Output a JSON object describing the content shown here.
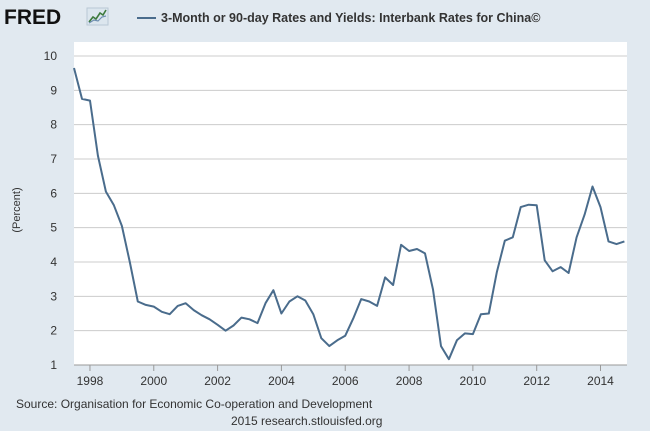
{
  "header": {
    "logo_text": "FRED",
    "logo_icon": "trend-line-icon",
    "legend_label": "3-Month or 90-day Rates and Yields: Interbank Rates for China©"
  },
  "footer": {
    "source": "Source: Organisation for Economic Co-operation and Development",
    "credit": "2015 research.stlouisfed.org"
  },
  "colors": {
    "background": "#e1e9f0",
    "plot_background": "#ffffff",
    "series": "#4a6c8c",
    "gridline": "#cccccc"
  },
  "chart_data": {
    "type": "line",
    "title": "",
    "xlabel": "",
    "ylabel": "(Percent)",
    "ylim": [
      1,
      10
    ],
    "xlim": [
      1997.5,
      2014.83
    ],
    "grid": true,
    "legend_position": "top",
    "yticks": [
      "1",
      "2",
      "3",
      "4",
      "5",
      "6",
      "7",
      "8",
      "9",
      "10"
    ],
    "xticks": [
      "1998",
      "2000",
      "2002",
      "2004",
      "2006",
      "2008",
      "2010",
      "2012",
      "2014"
    ],
    "series": [
      {
        "name": "3-Month or 90-day Rates and Yields: Interbank Rates for China©",
        "x": [
          1997.5,
          1997.75,
          1998.0,
          1998.25,
          1998.5,
          1998.75,
          1999.0,
          1999.25,
          1999.5,
          1999.75,
          2000.0,
          2000.25,
          2000.5,
          2000.75,
          2001.0,
          2001.25,
          2001.5,
          2001.75,
          2002.0,
          2002.25,
          2002.5,
          2002.75,
          2003.0,
          2003.25,
          2003.5,
          2003.75,
          2004.0,
          2004.25,
          2004.5,
          2004.75,
          2005.0,
          2005.25,
          2005.5,
          2005.75,
          2006.0,
          2006.25,
          2006.5,
          2006.75,
          2007.0,
          2007.25,
          2007.5,
          2007.75,
          2008.0,
          2008.25,
          2008.5,
          2008.75,
          2009.0,
          2009.25,
          2009.5,
          2009.75,
          2010.0,
          2010.25,
          2010.5,
          2010.75,
          2011.0,
          2011.25,
          2011.5,
          2011.75,
          2012.0,
          2012.25,
          2012.5,
          2012.75,
          2013.0,
          2013.25,
          2013.5,
          2013.75,
          2014.0,
          2014.25,
          2014.5,
          2014.75
        ],
        "values": [
          9.65,
          8.75,
          8.7,
          7.1,
          6.05,
          5.65,
          5.05,
          4.0,
          2.85,
          2.75,
          2.7,
          2.55,
          2.48,
          2.72,
          2.8,
          2.6,
          2.45,
          2.33,
          2.17,
          2.0,
          2.15,
          2.38,
          2.33,
          2.22,
          2.8,
          3.18,
          2.5,
          2.85,
          3.0,
          2.88,
          2.48,
          1.78,
          1.55,
          1.72,
          1.85,
          2.35,
          2.92,
          2.85,
          2.72,
          3.55,
          3.33,
          4.5,
          4.32,
          4.38,
          4.25,
          3.2,
          1.55,
          1.17,
          1.72,
          1.92,
          1.9,
          2.48,
          2.5,
          3.7,
          4.62,
          4.72,
          5.6,
          5.67,
          5.65,
          4.05,
          3.73,
          3.85,
          3.68,
          4.72,
          5.38,
          6.2,
          5.6,
          4.6,
          4.52,
          4.6
        ]
      }
    ]
  }
}
